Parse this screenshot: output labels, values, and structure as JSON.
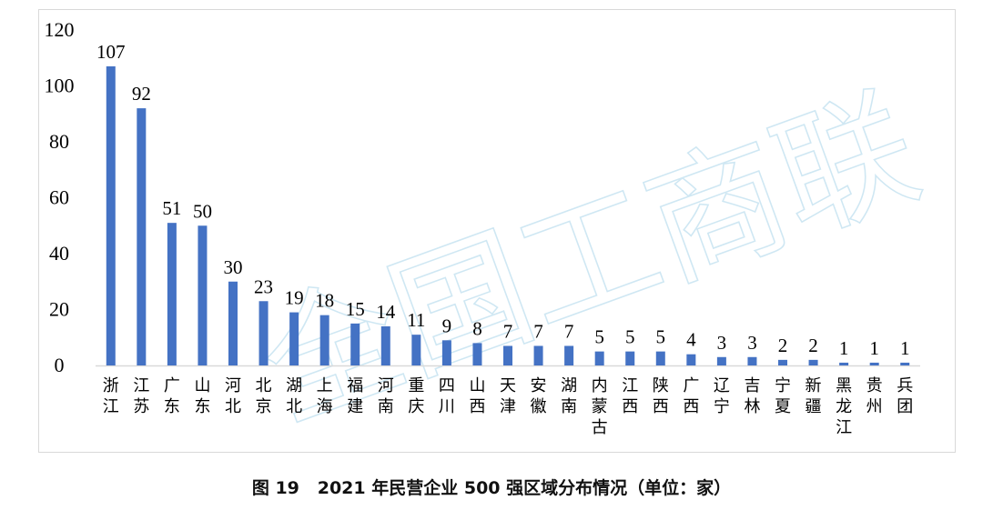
{
  "watermark": "全国工商联",
  "caption": "图 19   2021 年民营企业 500 强区域分布情况（单位：家）",
  "colors": {
    "bar": "#4472c4",
    "axis": "#d9d9d9",
    "watermark": "#bfe0ef"
  },
  "chart_data": {
    "type": "bar",
    "categories": [
      "浙江",
      "江苏",
      "广东",
      "山东",
      "河北",
      "北京",
      "湖北",
      "上海",
      "福建",
      "河南",
      "重庆",
      "四川",
      "山西",
      "天津",
      "安徽",
      "湖南",
      "内蒙古",
      "江西",
      "陕西",
      "广西",
      "辽宁",
      "吉林",
      "宁夏",
      "新疆",
      "黑龙江",
      "贵州",
      "兵团"
    ],
    "values": [
      107,
      92,
      51,
      50,
      30,
      23,
      19,
      18,
      15,
      14,
      11,
      9,
      8,
      7,
      7,
      7,
      5,
      5,
      5,
      4,
      3,
      3,
      2,
      2,
      1,
      1,
      1
    ],
    "ylim": [
      0,
      120
    ],
    "yticks": [
      0,
      20,
      40,
      60,
      80,
      100,
      120
    ],
    "grid": false,
    "legend": "none",
    "data_labels": true
  }
}
